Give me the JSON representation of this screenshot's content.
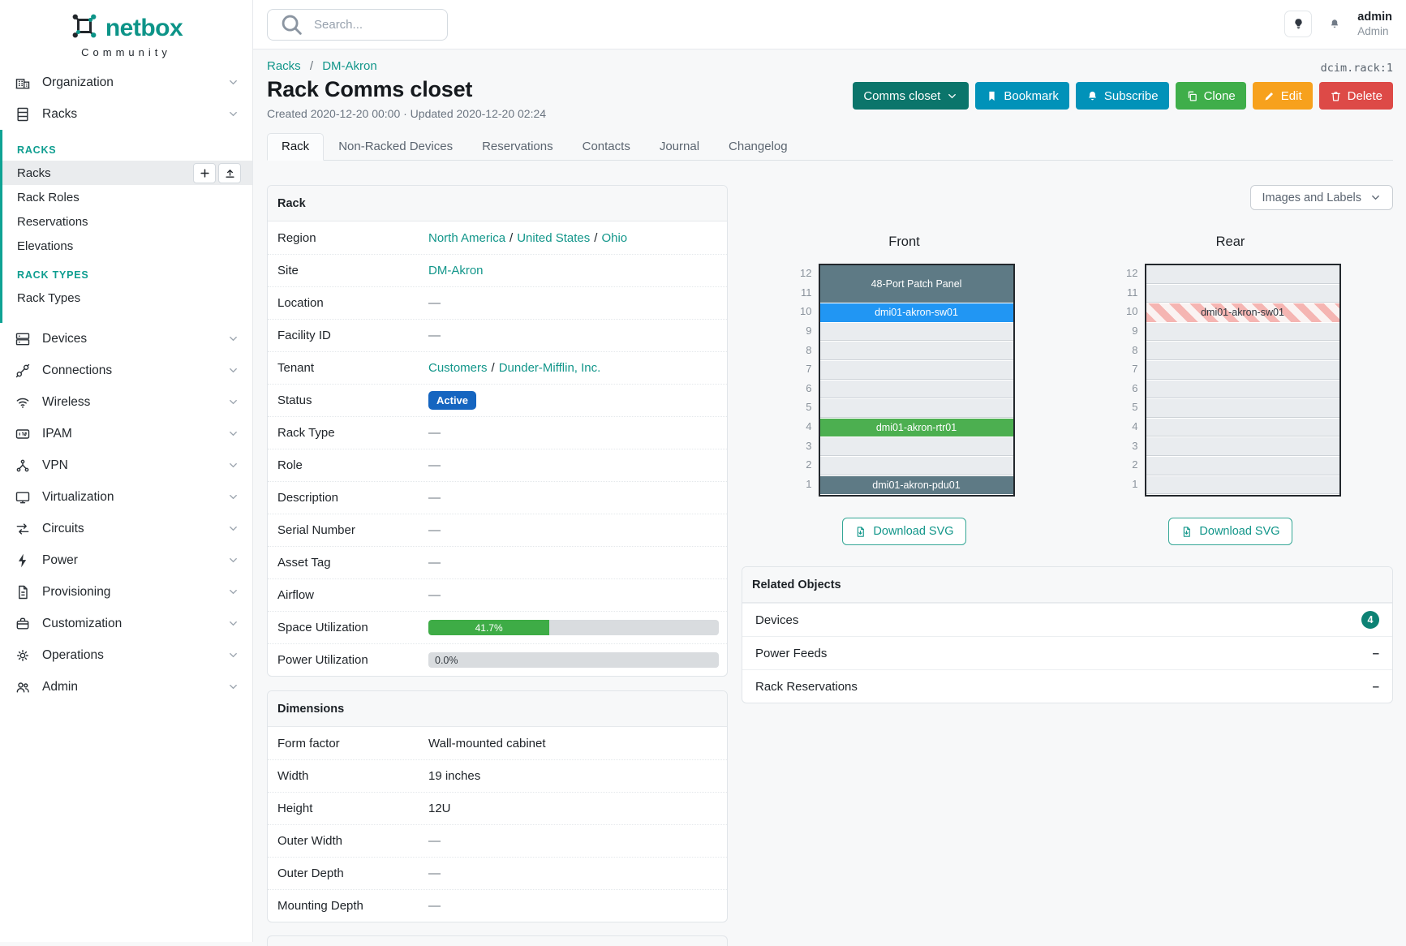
{
  "brand": {
    "name": "netbox",
    "tagline": "Community"
  },
  "topbar": {
    "search_placeholder": "Search...",
    "username": "admin",
    "user_role": "Admin"
  },
  "separators": {
    "link": "/",
    "breadcrumb": "/",
    "empty": "—",
    "related_empty": "–"
  },
  "sidebar": {
    "top_items": [
      {
        "label": "Organization",
        "icon": "organization-icon"
      },
      {
        "label": "Racks",
        "icon": "racks-icon"
      }
    ],
    "racks_menu": [
      {
        "header": "RACKS",
        "items": [
          {
            "label": "Racks",
            "active": true,
            "actions": [
              "plus-icon",
              "upload-icon"
            ]
          },
          {
            "label": "Rack Roles"
          },
          {
            "label": "Reservations"
          },
          {
            "label": "Elevations"
          }
        ]
      },
      {
        "header": "RACK TYPES",
        "items": [
          {
            "label": "Rack Types"
          }
        ]
      }
    ],
    "bottom_items": [
      {
        "label": "Devices",
        "icon": "devices-icon"
      },
      {
        "label": "Connections",
        "icon": "connections-icon"
      },
      {
        "label": "Wireless",
        "icon": "wireless-icon"
      },
      {
        "label": "IPAM",
        "icon": "ipam-icon"
      },
      {
        "label": "VPN",
        "icon": "vpn-icon"
      },
      {
        "label": "Virtualization",
        "icon": "virtualization-icon"
      },
      {
        "label": "Circuits",
        "icon": "circuits-icon"
      },
      {
        "label": "Power",
        "icon": "power-icon"
      },
      {
        "label": "Provisioning",
        "icon": "provisioning-icon"
      },
      {
        "label": "Customization",
        "icon": "customization-icon"
      },
      {
        "label": "Operations",
        "icon": "operations-icon"
      },
      {
        "label": "Admin",
        "icon": "admin-icon"
      }
    ]
  },
  "page": {
    "object_id": "dcim.rack:1",
    "breadcrumb": [
      "Racks",
      "DM-Akron"
    ],
    "title": "Rack Comms closet",
    "meta": "Created 2020-12-20 00:00 · Updated 2020-12-20 02:24",
    "actions": [
      {
        "label": "Comms closet",
        "style": "primary",
        "chevron": true
      },
      {
        "label": "Bookmark",
        "style": "info",
        "icon": "bookmark-icon"
      },
      {
        "label": "Subscribe",
        "style": "info",
        "icon": "bell-plus-icon"
      },
      {
        "label": "Clone",
        "style": "success",
        "icon": "copy-icon"
      },
      {
        "label": "Edit",
        "style": "warning",
        "icon": "pencil-icon"
      },
      {
        "label": "Delete",
        "style": "danger",
        "icon": "trash-icon"
      }
    ],
    "tabs": [
      {
        "label": "Rack",
        "active": true
      },
      {
        "label": "Non-Racked Devices"
      },
      {
        "label": "Reservations"
      },
      {
        "label": "Contacts"
      },
      {
        "label": "Journal"
      },
      {
        "label": "Changelog"
      }
    ]
  },
  "rack_panel": {
    "title": "Rack",
    "rows": [
      {
        "label": "Region",
        "type": "links",
        "links": [
          "North America",
          "United States",
          "Ohio"
        ]
      },
      {
        "label": "Site",
        "type": "links",
        "links": [
          "DM-Akron"
        ]
      },
      {
        "label": "Location",
        "type": "dash"
      },
      {
        "label": "Facility ID",
        "type": "dash"
      },
      {
        "label": "Tenant",
        "type": "links",
        "links": [
          "Customers",
          "Dunder-Mifflin, Inc."
        ]
      },
      {
        "label": "Status",
        "type": "badge",
        "value": "Active",
        "color": "#1565c0"
      },
      {
        "label": "Rack Type",
        "type": "dash"
      },
      {
        "label": "Role",
        "type": "dash"
      },
      {
        "label": "Description",
        "type": "dash"
      },
      {
        "label": "Serial Number",
        "type": "dash"
      },
      {
        "label": "Asset Tag",
        "type": "dash"
      },
      {
        "label": "Airflow",
        "type": "dash"
      },
      {
        "label": "Space Utilization",
        "type": "progress",
        "percent": 41.7,
        "text": "41.7%",
        "color": "#3eac46"
      },
      {
        "label": "Power Utilization",
        "type": "progress",
        "percent": 0,
        "text": "0.0%"
      }
    ]
  },
  "dimensions_panel": {
    "title": "Dimensions",
    "rows": [
      {
        "label": "Form factor",
        "type": "text",
        "value": "Wall-mounted cabinet"
      },
      {
        "label": "Width",
        "type": "text",
        "value": "19 inches"
      },
      {
        "label": "Height",
        "type": "text",
        "value": "12U"
      },
      {
        "label": "Outer Width",
        "type": "dash"
      },
      {
        "label": "Outer Depth",
        "type": "dash"
      },
      {
        "label": "Mounting Depth",
        "type": "dash"
      }
    ]
  },
  "elevations": {
    "view_selector": "Images and Labels",
    "download_label": "Download SVG",
    "unit_count": 12,
    "views": [
      {
        "title": "Front",
        "devices": [
          {
            "top_unit": 12,
            "span": 2,
            "label": "48-Port Patch Panel",
            "color": "#5e7a85"
          },
          {
            "top_unit": 10,
            "span": 1,
            "label": "dmi01-akron-sw01",
            "color": "#2196f3"
          },
          {
            "top_unit": 4,
            "span": 1,
            "label": "dmi01-akron-rtr01",
            "color": "#4caf50"
          },
          {
            "top_unit": 1,
            "span": 1,
            "label": "dmi01-akron-pdu01",
            "color": "#5e7a85"
          }
        ]
      },
      {
        "title": "Rear",
        "devices": [
          {
            "top_unit": 10,
            "span": 1,
            "label": "dmi01-akron-sw01",
            "hatched": true
          }
        ]
      }
    ]
  },
  "related_panel": {
    "title": "Related Objects",
    "rows": [
      {
        "label": "Devices",
        "count": "4"
      },
      {
        "label": "Power Feeds"
      },
      {
        "label": "Rack Reservations"
      }
    ]
  }
}
